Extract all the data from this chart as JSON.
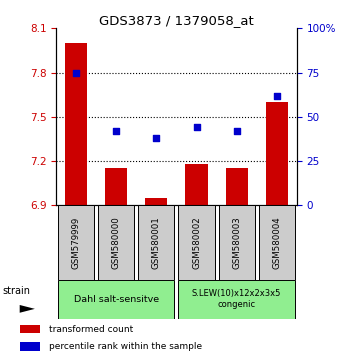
{
  "title": "GDS3873 / 1379058_at",
  "samples": [
    "GSM579999",
    "GSM580000",
    "GSM580001",
    "GSM580002",
    "GSM580003",
    "GSM580004"
  ],
  "bar_values": [
    8.0,
    7.15,
    6.95,
    7.18,
    7.15,
    7.6
  ],
  "percentile_values": [
    75,
    42,
    38,
    44,
    42,
    62
  ],
  "bar_baseline": 6.9,
  "ylim_left": [
    6.9,
    8.1
  ],
  "ylim_right": [
    0,
    100
  ],
  "yticks_left": [
    6.9,
    7.2,
    7.5,
    7.8,
    8.1
  ],
  "yticks_right": [
    0,
    25,
    50,
    75,
    100
  ],
  "ytick_labels_right": [
    "0",
    "25",
    "50",
    "75",
    "100%"
  ],
  "bar_color": "#cc0000",
  "dot_color": "#0000cc",
  "group1_label": "Dahl salt-sensitve",
  "group2_label": "S.LEW(10)x12x2x3x5\ncongenic",
  "group1_indices": [
    0,
    1,
    2
  ],
  "group2_indices": [
    3,
    4,
    5
  ],
  "group_color": "#90ee90",
  "tick_label_area_color": "#cccccc",
  "legend_bar_label": "transformed count",
  "legend_dot_label": "percentile rank within the sample",
  "strain_label": "strain",
  "left_tick_color": "#cc0000",
  "right_tick_color": "#0000cc",
  "grid_linestyle": ":",
  "grid_color": "black",
  "grid_linewidth": 0.8
}
